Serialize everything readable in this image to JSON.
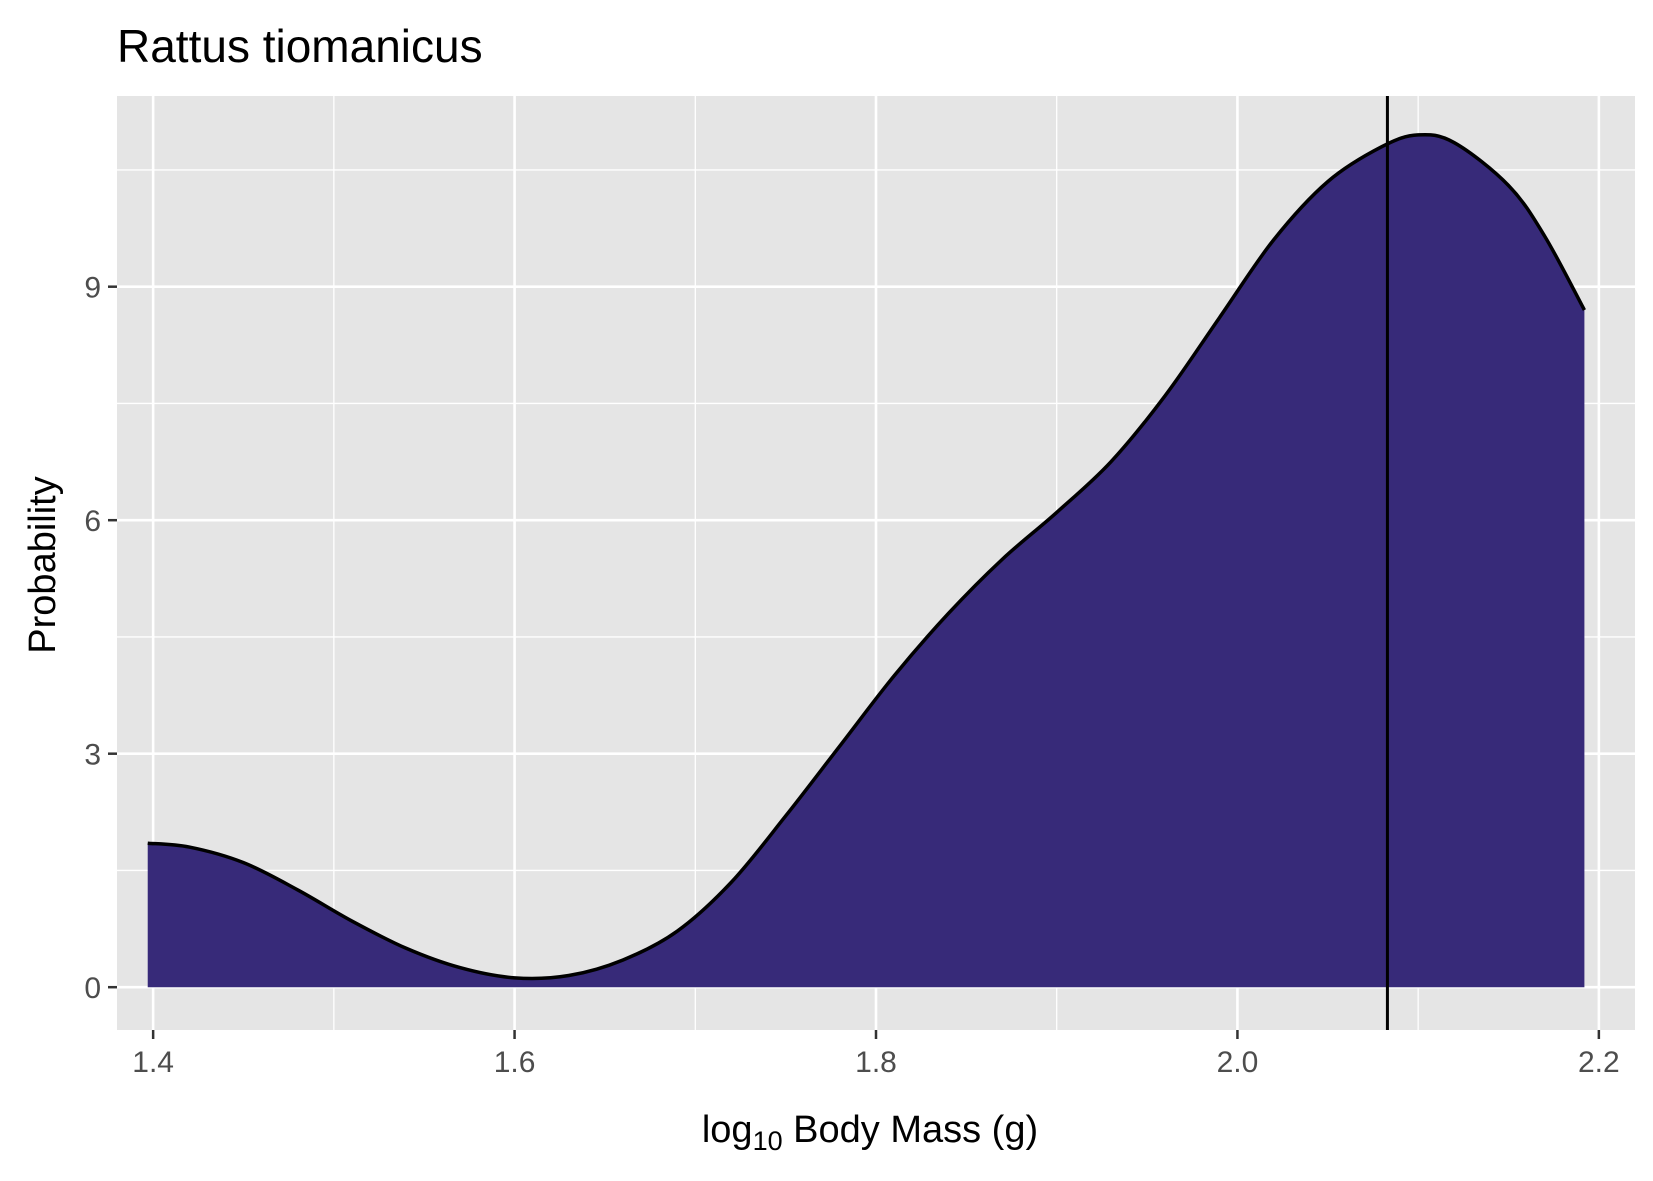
{
  "chart_data": {
    "type": "area",
    "title": "Rattus tiomanicus",
    "xlabel": {
      "prefix": "log",
      "subscript": "10",
      "suffix": " Body Mass (g)"
    },
    "ylabel": "Probability",
    "xlim": [
      1.38,
      2.22
    ],
    "ylim": [
      -0.55,
      11.45
    ],
    "x_ticks": [
      1.4,
      1.6,
      1.8,
      2.0,
      2.2
    ],
    "x_tick_labels": [
      "1.4",
      "1.6",
      "1.8",
      "2.0",
      "2.2"
    ],
    "y_ticks": [
      0,
      3,
      6,
      9
    ],
    "y_tick_labels": [
      "0",
      "3",
      "6",
      "9"
    ],
    "x_minor": [
      1.5,
      1.7,
      1.9,
      2.1
    ],
    "y_minor": [
      1.5,
      4.5,
      7.5,
      10.5
    ],
    "grid": true,
    "reference_line_x": 2.083,
    "density": [
      {
        "x": 1.397,
        "y": 1.85
      },
      {
        "x": 1.42,
        "y": 1.8
      },
      {
        "x": 1.45,
        "y": 1.6
      },
      {
        "x": 1.48,
        "y": 1.25
      },
      {
        "x": 1.51,
        "y": 0.85
      },
      {
        "x": 1.54,
        "y": 0.5
      },
      {
        "x": 1.57,
        "y": 0.25
      },
      {
        "x": 1.6,
        "y": 0.12
      },
      {
        "x": 1.63,
        "y": 0.15
      },
      {
        "x": 1.66,
        "y": 0.35
      },
      {
        "x": 1.69,
        "y": 0.72
      },
      {
        "x": 1.72,
        "y": 1.35
      },
      {
        "x": 1.75,
        "y": 2.2
      },
      {
        "x": 1.78,
        "y": 3.1
      },
      {
        "x": 1.81,
        "y": 4.0
      },
      {
        "x": 1.84,
        "y": 4.8
      },
      {
        "x": 1.87,
        "y": 5.5
      },
      {
        "x": 1.9,
        "y": 6.1
      },
      {
        "x": 1.93,
        "y": 6.75
      },
      {
        "x": 1.96,
        "y": 7.6
      },
      {
        "x": 1.99,
        "y": 8.6
      },
      {
        "x": 2.02,
        "y": 9.6
      },
      {
        "x": 2.05,
        "y": 10.35
      },
      {
        "x": 2.08,
        "y": 10.8
      },
      {
        "x": 2.1,
        "y": 10.95
      },
      {
        "x": 2.12,
        "y": 10.85
      },
      {
        "x": 2.15,
        "y": 10.3
      },
      {
        "x": 2.17,
        "y": 9.65
      },
      {
        "x": 2.192,
        "y": 8.7
      }
    ],
    "fill_color": "#372a79",
    "line_color": "#000000",
    "panel_background": "#e5e5e5",
    "grid_color": "#ffffff"
  }
}
